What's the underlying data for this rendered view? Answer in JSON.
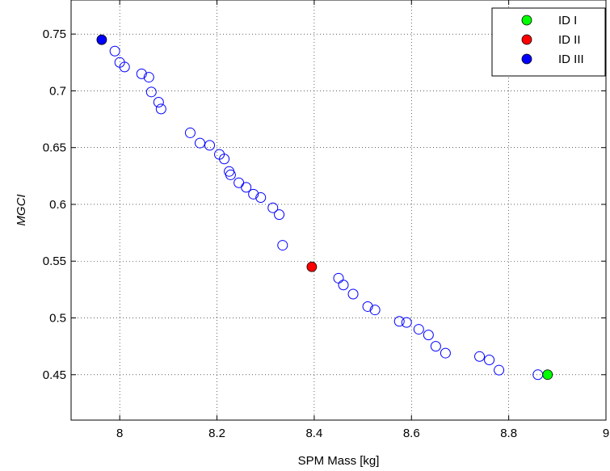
{
  "chart_data": {
    "type": "scatter",
    "xlabel": "SPM Mass [kg]",
    "ylabel": "MGCI",
    "xlim": [
      7.9,
      9.0
    ],
    "ylim": [
      0.41,
      0.78
    ],
    "xticks": [
      "8",
      "8.2",
      "8.4",
      "8.6",
      "8.8",
      "9"
    ],
    "yticks": [
      "0.45",
      "0.5",
      "0.55",
      "0.6",
      "0.65",
      "0.7",
      "0.75"
    ],
    "grid": true,
    "legend_position": "top-right",
    "series": [
      {
        "style": "open-circle",
        "color": "#0000ff",
        "points": [
          [
            7.99,
            0.735
          ],
          [
            8.0,
            0.725
          ],
          [
            8.01,
            0.721
          ],
          [
            8.045,
            0.715
          ],
          [
            8.06,
            0.712
          ],
          [
            8.065,
            0.699
          ],
          [
            8.08,
            0.69
          ],
          [
            8.085,
            0.684
          ],
          [
            8.145,
            0.663
          ],
          [
            8.165,
            0.654
          ],
          [
            8.185,
            0.652
          ],
          [
            8.205,
            0.644
          ],
          [
            8.215,
            0.64
          ],
          [
            8.225,
            0.629
          ],
          [
            8.228,
            0.626
          ],
          [
            8.245,
            0.619
          ],
          [
            8.26,
            0.615
          ],
          [
            8.275,
            0.609
          ],
          [
            8.29,
            0.606
          ],
          [
            8.315,
            0.597
          ],
          [
            8.328,
            0.591
          ],
          [
            8.335,
            0.564
          ],
          [
            8.45,
            0.535
          ],
          [
            8.46,
            0.529
          ],
          [
            8.48,
            0.521
          ],
          [
            8.51,
            0.51
          ],
          [
            8.525,
            0.507
          ],
          [
            8.575,
            0.497
          ],
          [
            8.59,
            0.496
          ],
          [
            8.615,
            0.49
          ],
          [
            8.635,
            0.485
          ],
          [
            8.65,
            0.475
          ],
          [
            8.67,
            0.469
          ],
          [
            8.74,
            0.466
          ],
          [
            8.76,
            0.463
          ],
          [
            8.78,
            0.454
          ],
          [
            8.86,
            0.45
          ]
        ]
      },
      {
        "name": "ID I",
        "style": "filled-circle",
        "color": "#00ff00",
        "points": [
          [
            8.88,
            0.45
          ]
        ]
      },
      {
        "name": "ID II",
        "style": "filled-circle",
        "color": "#ff0000",
        "points": [
          [
            8.395,
            0.545
          ]
        ]
      },
      {
        "name": "ID III",
        "style": "filled-circle",
        "color": "#0000ff",
        "points": [
          [
            7.963,
            0.745
          ]
        ]
      }
    ]
  }
}
